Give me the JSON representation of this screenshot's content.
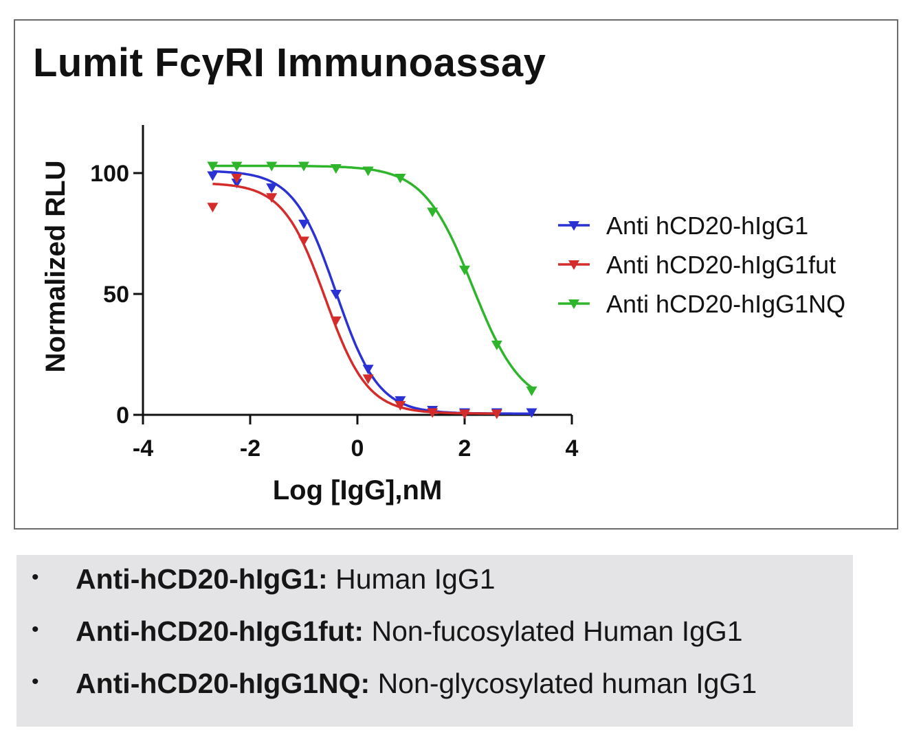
{
  "title": "Lumit FcγRI Immunoassay",
  "chart_data": {
    "type": "line",
    "xlabel": "Log [IgG],nM",
    "ylabel": "Normalized RLU",
    "xlim": [
      -4,
      4
    ],
    "ylim": [
      0,
      120
    ],
    "xticks": [
      -4,
      -2,
      0,
      2,
      4
    ],
    "yticks": [
      0,
      50,
      100
    ],
    "legend_position": "right",
    "grid": false,
    "series": [
      {
        "name": "Anti hCD20-hIgG1",
        "color": "#2a32d4",
        "marker": "triangle-down",
        "points": [
          [
            -2.7,
            99
          ],
          [
            -2.25,
            96
          ],
          [
            -1.6,
            94
          ],
          [
            -1.0,
            79
          ],
          [
            -0.4,
            50
          ],
          [
            0.2,
            19
          ],
          [
            0.8,
            6
          ],
          [
            1.4,
            2
          ],
          [
            2.0,
            1
          ],
          [
            2.6,
            1
          ],
          [
            3.25,
            1
          ]
        ],
        "fit": {
          "bottom": 0.5,
          "top": 101,
          "log_ec50": -0.4,
          "hill": 1.1
        }
      },
      {
        "name": "Anti hCD20-hIgG1fut",
        "color": "#d42b2b",
        "marker": "triangle-down",
        "points": [
          [
            -2.7,
            86
          ],
          [
            -2.25,
            98
          ],
          [
            -1.6,
            90
          ],
          [
            -1.0,
            72
          ],
          [
            -0.4,
            39
          ],
          [
            0.2,
            15
          ],
          [
            0.8,
            4
          ],
          [
            1.4,
            1
          ],
          [
            2.0,
            0.5
          ],
          [
            2.6,
            0.5
          ]
        ],
        "fit": {
          "bottom": 0.5,
          "top": 96,
          "log_ec50": -0.6,
          "hill": 1.1
        }
      },
      {
        "name": "Anti hCD20-hIgG1NQ",
        "color": "#2fb52c",
        "marker": "triangle-down",
        "points": [
          [
            -2.7,
            103
          ],
          [
            -2.25,
            103
          ],
          [
            -1.6,
            103
          ],
          [
            -1.0,
            103
          ],
          [
            -0.4,
            102
          ],
          [
            0.2,
            101
          ],
          [
            0.8,
            98
          ],
          [
            1.4,
            84
          ],
          [
            2.0,
            60
          ],
          [
            2.6,
            29
          ],
          [
            3.25,
            10
          ]
        ],
        "fit": {
          "bottom": 3,
          "top": 103,
          "log_ec50": 2.15,
          "hill": 0.95
        }
      }
    ]
  },
  "notes": [
    {
      "term": "Anti-hCD20-hIgG1:",
      "desc": "Human IgG1"
    },
    {
      "term": "Anti-hCD20-hIgG1fut:",
      "desc": "Non-fucosylated Human IgG1"
    },
    {
      "term": "Anti-hCD20-hIgG1NQ:",
      "desc": "Non-glycosylated human IgG1"
    }
  ]
}
